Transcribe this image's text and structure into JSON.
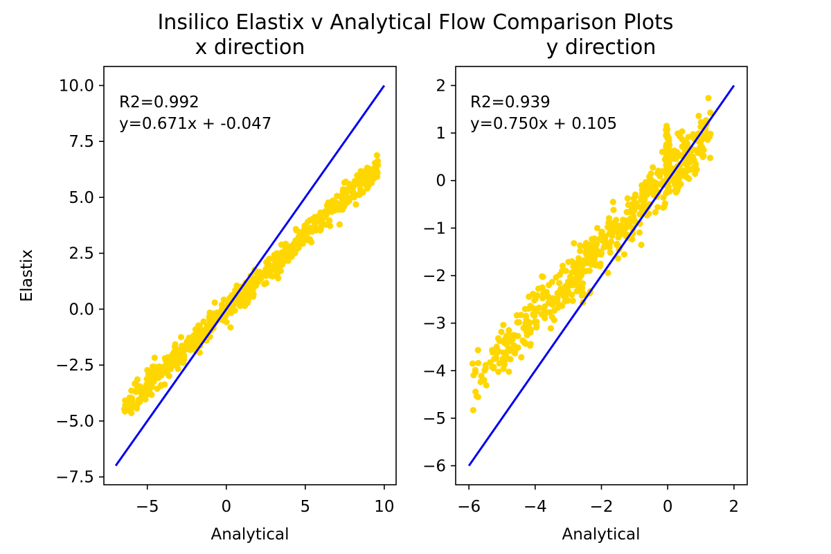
{
  "figure": {
    "suptitle": "Insilico Elastix v Analytical Flow Comparison Plots"
  },
  "colors": {
    "scatter": "#FFD700",
    "reference_line": "#0000EE",
    "axes": "#000000",
    "background": "#ffffff"
  },
  "chart_data": [
    {
      "type": "scatter",
      "title": "x direction",
      "xlabel": "Analytical",
      "ylabel": "Elastix",
      "xlim": [
        -7.75,
        10.75
      ],
      "ylim": [
        -7.85,
        10.85
      ],
      "xticks": [
        -5,
        0,
        5,
        10
      ],
      "xtick_labels": [
        "−5",
        "0",
        "5",
        "10"
      ],
      "yticks": [
        -7.5,
        -5.0,
        -2.5,
        0.0,
        2.5,
        5.0,
        7.5,
        10.0
      ],
      "ytick_labels": [
        "−7.5",
        "−5.0",
        "−2.5",
        "0.0",
        "2.5",
        "5.0",
        "7.5",
        "10.0"
      ],
      "grid": false,
      "annotation": [
        "R2=0.992",
        "y=0.671x + -0.047"
      ],
      "reference_line": {
        "x": [
          -7,
          10
        ],
        "y": [
          -7,
          10
        ]
      },
      "fit": {
        "slope": 0.671,
        "intercept": -0.047,
        "r2": 0.992
      },
      "scatter_x_range": [
        -6.5,
        9.6
      ],
      "n_points": 600
    },
    {
      "type": "scatter",
      "title": "y direction",
      "xlabel": "Analytical",
      "ylabel": "",
      "xlim": [
        -6.4,
        2.4
      ],
      "ylim": [
        -6.4,
        2.4
      ],
      "xticks": [
        -6,
        -4,
        -2,
        0,
        2
      ],
      "xtick_labels": [
        "−6",
        "−4",
        "−2",
        "0",
        "2"
      ],
      "yticks": [
        -6,
        -5,
        -4,
        -3,
        -2,
        -1,
        0,
        1,
        2
      ],
      "ytick_labels": [
        "−6",
        "−5",
        "−4",
        "−3",
        "−2",
        "−1",
        "0",
        "1",
        "2"
      ],
      "grid": false,
      "annotation": [
        "R2=0.939",
        "y=0.750x + 0.105"
      ],
      "reference_line": {
        "x": [
          -6,
          2
        ],
        "y": [
          -6,
          2
        ]
      },
      "fit": {
        "slope": 0.75,
        "intercept": 0.105,
        "r2": 0.939
      },
      "scatter_x_range": [
        -6.0,
        1.3
      ],
      "n_points": 600
    }
  ]
}
